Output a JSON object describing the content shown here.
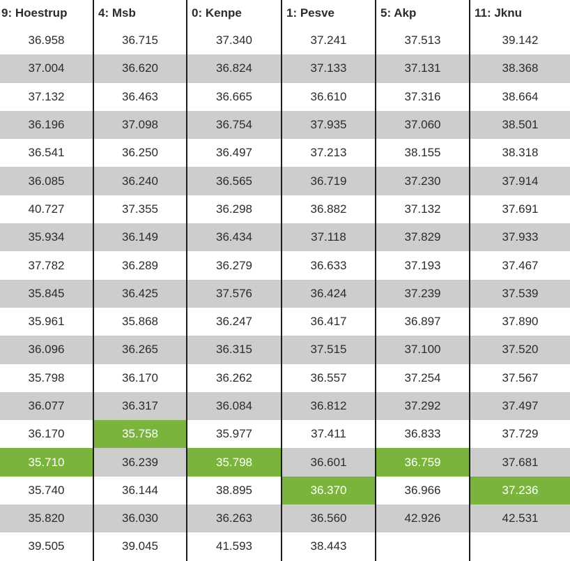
{
  "table": {
    "headers": [
      "9: Hoestrup",
      "4: Msb",
      "0: Kenpe",
      "1: Pesve",
      "5: Akp",
      "11: Jknu"
    ],
    "rows": [
      [
        "36.958",
        "36.715",
        "37.340",
        "37.241",
        "37.513",
        "39.142"
      ],
      [
        "37.004",
        "36.620",
        "36.824",
        "37.133",
        "37.131",
        "38.368"
      ],
      [
        "37.132",
        "36.463",
        "36.665",
        "36.610",
        "37.316",
        "38.664"
      ],
      [
        "36.196",
        "37.098",
        "36.754",
        "37.935",
        "37.060",
        "38.501"
      ],
      [
        "36.541",
        "36.250",
        "36.497",
        "37.213",
        "38.155",
        "38.318"
      ],
      [
        "36.085",
        "36.240",
        "36.565",
        "36.719",
        "37.230",
        "37.914"
      ],
      [
        "40.727",
        "37.355",
        "36.298",
        "36.882",
        "37.132",
        "37.691"
      ],
      [
        "35.934",
        "36.149",
        "36.434",
        "37.118",
        "37.829",
        "37.933"
      ],
      [
        "37.782",
        "36.289",
        "36.279",
        "36.633",
        "37.193",
        "37.467"
      ],
      [
        "35.845",
        "36.425",
        "37.576",
        "36.424",
        "37.239",
        "37.539"
      ],
      [
        "35.961",
        "35.868",
        "36.247",
        "36.417",
        "36.897",
        "37.890"
      ],
      [
        "36.096",
        "36.265",
        "36.315",
        "37.515",
        "37.100",
        "37.520"
      ],
      [
        "35.798",
        "36.170",
        "36.262",
        "36.557",
        "37.254",
        "37.567"
      ],
      [
        "36.077",
        "36.317",
        "36.084",
        "36.812",
        "37.292",
        "37.497"
      ],
      [
        "36.170",
        "35.758",
        "35.977",
        "37.411",
        "36.833",
        "37.729"
      ],
      [
        "35.710",
        "36.239",
        "35.798",
        "36.601",
        "36.759",
        "37.681"
      ],
      [
        "35.740",
        "36.144",
        "38.895",
        "36.370",
        "36.966",
        "37.236"
      ],
      [
        "35.820",
        "36.030",
        "36.263",
        "36.560",
        "42.926",
        "42.531"
      ],
      [
        "39.505",
        "39.045",
        "41.593",
        "38.443",
        "",
        ""
      ]
    ],
    "highlighted_cells": [
      {
        "row": 14,
        "col": 1
      },
      {
        "row": 15,
        "col": 0
      },
      {
        "row": 15,
        "col": 2
      },
      {
        "row": 15,
        "col": 4
      },
      {
        "row": 16,
        "col": 3
      },
      {
        "row": 16,
        "col": 5
      }
    ]
  },
  "colors": {
    "highlight": "#7ab43c",
    "stripe": "#cdcdcd",
    "divider": "#1c1c1c"
  }
}
